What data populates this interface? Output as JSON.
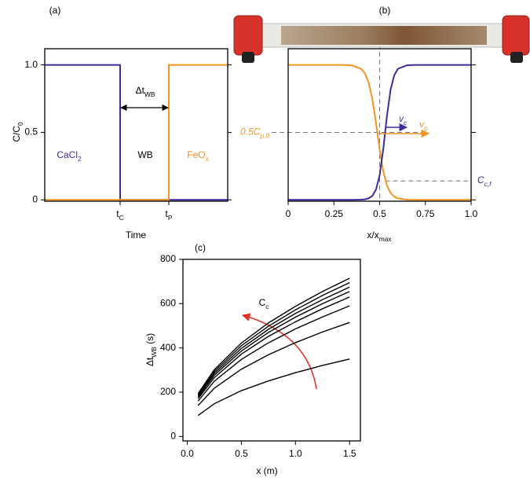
{
  "chart_data": [
    {
      "type": "line",
      "title": "(a)",
      "xlabel": "Time",
      "ylabel": [
        "C/C",
        "0"
      ],
      "xlim": [
        0,
        1
      ],
      "ylim": [
        -0.01,
        1.12
      ],
      "xticks": [
        {
          "value": 0.412,
          "label": [
            "t",
            "C"
          ]
        },
        {
          "value": 0.678,
          "label": [
            "t",
            "P"
          ]
        }
      ],
      "yticks": [
        0,
        0.5,
        {
          "value": 1,
          "label": "1.0"
        }
      ],
      "series": [
        {
          "name": [
            "CaCl",
            "2"
          ],
          "color": "#3b2e9c",
          "x": [
            0,
            0.412,
            0.412,
            1
          ],
          "values": [
            1,
            1,
            0,
            0
          ]
        },
        {
          "name": [
            "FeO",
            "x"
          ],
          "color": "#f39320",
          "x": [
            0,
            0.678,
            0.678,
            1
          ],
          "values": [
            0,
            0,
            1,
            1
          ]
        }
      ],
      "annotations": [
        {
          "text": "WB"
        },
        {
          "text": [
            "Δt",
            "WB"
          ]
        }
      ]
    },
    {
      "type": "line",
      "title": "(b)",
      "xlabel": [
        "x/x",
        "max"
      ],
      "xlim": [
        0,
        1
      ],
      "ylim": [
        -0.01,
        1.12
      ],
      "xticks": [
        0,
        0.25,
        0.5,
        0.75,
        {
          "value": 1,
          "label": "1.0"
        }
      ],
      "yticks": [
        0,
        0.5,
        1
      ],
      "x": [
        0,
        0.1,
        0.2,
        0.3,
        0.35,
        0.4,
        0.42,
        0.44,
        0.46,
        0.48,
        0.5,
        0.52,
        0.54,
        0.56,
        0.58,
        0.6,
        0.65,
        0.7,
        0.8,
        0.9,
        1
      ],
      "series": [
        {
          "color": "#f39320",
          "values": [
            1,
            1,
            1,
            1,
            0.996,
            0.97,
            0.936,
            0.868,
            0.746,
            0.57,
            0.373,
            0.211,
            0.107,
            0.051,
            0.024,
            0.011,
            0.001,
            0,
            0,
            0,
            0
          ]
        },
        {
          "color": "#3b2e9c",
          "values": [
            0,
            0,
            0,
            0,
            0,
            0.002,
            0.004,
            0.011,
            0.029,
            0.076,
            0.182,
            0.378,
            0.622,
            0.818,
            0.924,
            0.971,
            0.998,
            1,
            1,
            1,
            1
          ]
        }
      ],
      "hlines": [
        {
          "y": 0.5,
          "label": [
            "0.5C",
            "p,0"
          ],
          "color": "#f39320"
        },
        {
          "y": 0.14,
          "label": [
            "C",
            "c,f"
          ],
          "color": "#3b2e9c"
        }
      ],
      "vlines": [
        0.5
      ],
      "annotations": [
        {
          "text": [
            "v",
            "c"
          ],
          "color": "#3b2e9c"
        },
        {
          "text": [
            "v",
            "p"
          ],
          "color": "#f39320"
        }
      ]
    },
    {
      "type": "line",
      "title": "(c)",
      "xlabel": "x (m)",
      "ylabel": [
        "Δt",
        "WB",
        " (s)"
      ],
      "xlim": [
        -0.04,
        1.6
      ],
      "ylim": [
        -20,
        800
      ],
      "xticks": [
        {
          "value": 0,
          "label": "0.0"
        },
        0.5,
        {
          "value": 1,
          "label": "1.0"
        },
        1.5
      ],
      "yticks": [
        0,
        200,
        400,
        600,
        800
      ],
      "x": [
        0.1,
        0.25,
        0.5,
        0.75,
        1,
        1.25,
        1.5
      ],
      "series": [
        {
          "color": "#000000",
          "values": [
            95,
            148,
            207,
            251,
            288,
            321,
            350
          ]
        },
        {
          "color": "#000000",
          "values": [
            140,
            218,
            304,
            369,
            424,
            472,
            515
          ]
        },
        {
          "color": "#000000",
          "values": [
            160,
            250,
            348,
            423,
            486,
            540,
            590
          ]
        },
        {
          "color": "#000000",
          "values": [
            171,
            266,
            372,
            452,
            518,
            577,
            630
          ]
        },
        {
          "color": "#000000",
          "values": [
            178,
            277,
            386,
            470,
            539,
            600,
            655
          ]
        },
        {
          "color": "#000000",
          "values": [
            184,
            286,
            398,
            484,
            556,
            618,
            675
          ]
        },
        {
          "color": "#000000",
          "values": [
            189,
            294,
            410,
            498,
            572,
            637,
            695
          ]
        },
        {
          "color": "#000000",
          "values": [
            194,
            302,
            422,
            513,
            588,
            655,
            715
          ]
        }
      ],
      "annotations": [
        {
          "text": [
            "C",
            "c"
          ],
          "color": "#e0302a"
        }
      ]
    }
  ]
}
